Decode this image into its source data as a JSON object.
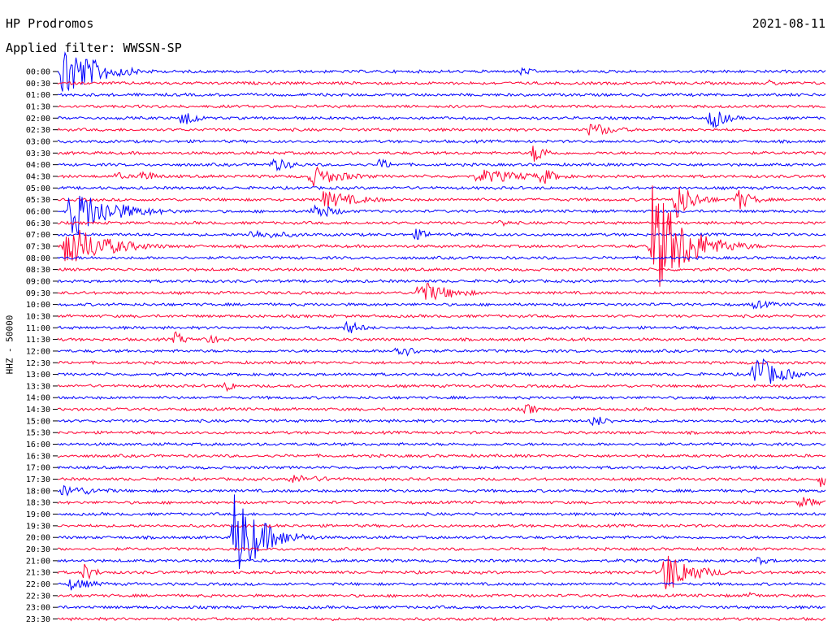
{
  "header": {
    "station": "HP Prodromos",
    "filter": "Applied filter: WWSSN-SP",
    "date": "2021-08-11",
    "channel": "HHZ - 50000"
  },
  "colors": {
    "trace_a": "#0000ff",
    "trace_b": "#ff0033"
  },
  "chart_data": {
    "type": "helicorder",
    "title": "HP Prodromos",
    "subtitle": "Applied filter: WWSSN-SP",
    "date": "2021-08-11",
    "ylabel": "HHZ - 50000",
    "row_labels": [
      "00:00",
      "00:30",
      "01:00",
      "01:30",
      "02:00",
      "02:30",
      "03:00",
      "03:30",
      "04:00",
      "04:30",
      "05:00",
      "05:30",
      "06:00",
      "06:30",
      "07:00",
      "07:30",
      "08:00",
      "08:30",
      "09:00",
      "09:30",
      "10:00",
      "10:30",
      "11:00",
      "11:30",
      "12:00",
      "12:30",
      "13:00",
      "13:30",
      "14:00",
      "14:30",
      "15:00",
      "15:30",
      "16:00",
      "16:30",
      "17:00",
      "17:30",
      "18:00",
      "18:30",
      "19:00",
      "19:30",
      "20:00",
      "20:30",
      "21:00",
      "21:30",
      "22:00",
      "22:30",
      "23:00",
      "23:30"
    ],
    "row_minutes": 30,
    "series_colors": [
      "blue",
      "red"
    ],
    "events": [
      {
        "row": 0,
        "minute": 18.1,
        "amplitude": 6,
        "duration": 0.6
      },
      {
        "row": 0,
        "minute": 0.2,
        "amplitude": 40,
        "duration": 1.2
      },
      {
        "row": 1,
        "minute": 27.8,
        "amplitude": 4,
        "duration": 0.8
      },
      {
        "row": 4,
        "minute": 4.9,
        "amplitude": 18,
        "duration": 0.4
      },
      {
        "row": 4,
        "minute": 25.5,
        "amplitude": 16,
        "duration": 0.6
      },
      {
        "row": 5,
        "minute": 20.8,
        "amplitude": 10,
        "duration": 1.0
      },
      {
        "row": 7,
        "minute": 18.6,
        "amplitude": 14,
        "duration": 0.5
      },
      {
        "row": 8,
        "minute": 8.4,
        "amplitude": 10,
        "duration": 0.8
      },
      {
        "row": 8,
        "minute": 12.6,
        "amplitude": 9,
        "duration": 0.4
      },
      {
        "row": 9,
        "minute": 2.3,
        "amplitude": 6,
        "duration": 0.5
      },
      {
        "row": 9,
        "minute": 3.2,
        "amplitude": 10,
        "duration": 0.6
      },
      {
        "row": 9,
        "minute": 9.9,
        "amplitude": 14,
        "duration": 1.2
      },
      {
        "row": 9,
        "minute": 16.4,
        "amplitude": 10,
        "duration": 2.0
      },
      {
        "row": 9,
        "minute": 18.9,
        "amplitude": 12,
        "duration": 0.6
      },
      {
        "row": 11,
        "minute": 10.4,
        "amplitude": 12,
        "duration": 1.4
      },
      {
        "row": 11,
        "minute": 24.1,
        "amplitude": 28,
        "duration": 0.7
      },
      {
        "row": 11,
        "minute": 26.5,
        "amplitude": 16,
        "duration": 0.6
      },
      {
        "row": 12,
        "minute": 0.5,
        "amplitude": 34,
        "duration": 1.5
      },
      {
        "row": 12,
        "minute": 10.0,
        "amplitude": 12,
        "duration": 0.8
      },
      {
        "row": 13,
        "minute": 17.3,
        "amplitude": 6,
        "duration": 0.4
      },
      {
        "row": 14,
        "minute": 7.5,
        "amplitude": 6,
        "duration": 2.0
      },
      {
        "row": 14,
        "minute": 14.0,
        "amplitude": 8,
        "duration": 0.6
      },
      {
        "row": 15,
        "minute": 0.3,
        "amplitude": 30,
        "duration": 1.5
      },
      {
        "row": 15,
        "minute": 23.2,
        "amplitude": 80,
        "duration": 1.2
      },
      {
        "row": 19,
        "minute": 14.1,
        "amplitude": 16,
        "duration": 1.2
      },
      {
        "row": 20,
        "minute": 27.2,
        "amplitude": 6,
        "duration": 1.0
      },
      {
        "row": 22,
        "minute": 11.3,
        "amplitude": 10,
        "duration": 0.6
      },
      {
        "row": 23,
        "minute": 4.6,
        "amplitude": 10,
        "duration": 0.4
      },
      {
        "row": 23,
        "minute": 5.7,
        "amplitude": 6,
        "duration": 1.0
      },
      {
        "row": 24,
        "minute": 13.2,
        "amplitude": 10,
        "duration": 0.8
      },
      {
        "row": 26,
        "minute": 27.2,
        "amplitude": 30,
        "duration": 0.8
      },
      {
        "row": 26,
        "minute": 28.6,
        "amplitude": 8,
        "duration": 0.4
      },
      {
        "row": 27,
        "minute": 6.6,
        "amplitude": 10,
        "duration": 0.3
      },
      {
        "row": 29,
        "minute": 18.3,
        "amplitude": 8,
        "duration": 0.5
      },
      {
        "row": 30,
        "minute": 20.9,
        "amplitude": 8,
        "duration": 0.7
      },
      {
        "row": 35,
        "minute": 9.0,
        "amplitude": 6,
        "duration": 2.0
      },
      {
        "row": 35,
        "minute": 29.8,
        "amplitude": 10,
        "duration": 0.5
      },
      {
        "row": 36,
        "minute": 0.2,
        "amplitude": 8,
        "duration": 1.5
      },
      {
        "row": 37,
        "minute": 29.0,
        "amplitude": 8,
        "duration": 0.8
      },
      {
        "row": 40,
        "minute": 6.9,
        "amplitude": 60,
        "duration": 1.0
      },
      {
        "row": 42,
        "minute": 27.3,
        "amplitude": 6,
        "duration": 0.6
      },
      {
        "row": 43,
        "minute": 1.0,
        "amplitude": 12,
        "duration": 0.5
      },
      {
        "row": 43,
        "minute": 23.7,
        "amplitude": 30,
        "duration": 1.0
      },
      {
        "row": 44,
        "minute": 0.5,
        "amplitude": 8,
        "duration": 1.0
      },
      {
        "row": 45,
        "minute": 27.1,
        "amplitude": 6,
        "duration": 0.3
      }
    ]
  }
}
